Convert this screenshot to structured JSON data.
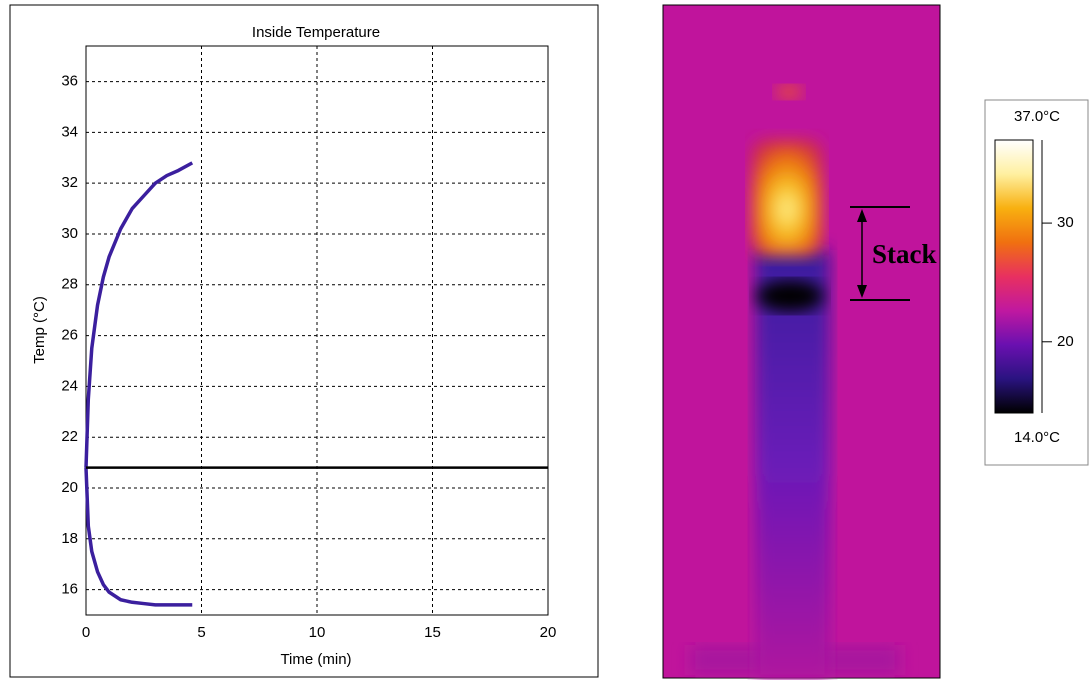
{
  "chart_data": {
    "type": "line",
    "title": "Inside Temperature",
    "x_label": "Time (min)",
    "y_label": "Temp (°C)",
    "x": [
      0,
      0.1,
      0.25,
      0.5,
      0.75,
      1,
      1.5,
      2,
      2.5,
      3,
      3.5,
      4,
      4.6
    ],
    "series": [
      {
        "color": "#3b1f9e",
        "values": [
          20.8,
          23.5,
          25.5,
          27.2,
          28.3,
          29.1,
          30.2,
          31.0,
          31.5,
          32.0,
          32.3,
          32.5,
          32.8
        ]
      },
      {
        "color": "#3b1f9e",
        "values": [
          20.8,
          18.5,
          17.5,
          16.7,
          16.2,
          15.9,
          15.6,
          15.5,
          15.45,
          15.4,
          15.4,
          15.4,
          15.4
        ]
      }
    ],
    "hline": 20.8,
    "hline_color": "#000000",
    "xlim": [
      0,
      20
    ],
    "xticks": [
      0,
      5,
      10,
      15,
      20
    ],
    "ylim": [
      15,
      37.4
    ],
    "yticks": [
      16,
      18,
      20,
      22,
      24,
      26,
      28,
      30,
      32,
      34,
      36
    ],
    "grid": true
  },
  "image": {
    "annotation": "Stack"
  },
  "colorbar": {
    "min": {
      "value": 14,
      "label": "14.0°C"
    },
    "max": {
      "value": 37,
      "label": "37.0°C"
    },
    "ticks": [
      20,
      30
    ],
    "colors": [
      "#000000",
      "#2a1380",
      "#6a10b0",
      "#c018a0",
      "#e83060",
      "#f07010",
      "#f8b010",
      "#fff0a0",
      "#ffffff"
    ]
  }
}
